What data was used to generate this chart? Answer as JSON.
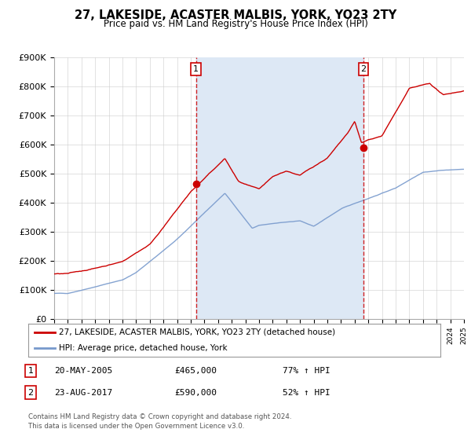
{
  "title": "27, LAKESIDE, ACASTER MALBIS, YORK, YO23 2TY",
  "subtitle": "Price paid vs. HM Land Registry's House Price Index (HPI)",
  "ylim": [
    0,
    900000
  ],
  "yticks": [
    0,
    100000,
    200000,
    300000,
    400000,
    500000,
    600000,
    700000,
    800000,
    900000
  ],
  "ytick_labels": [
    "£0",
    "£100K",
    "£200K",
    "£300K",
    "£400K",
    "£500K",
    "£600K",
    "£700K",
    "£800K",
    "£900K"
  ],
  "background_color": "#ffffff",
  "plot_bg_color": "#ffffff",
  "grid_color": "#cccccc",
  "sale1_date_num": 2005.38,
  "sale1_price": 465000,
  "sale2_date_num": 2017.64,
  "sale2_price": 590000,
  "red_line_color": "#cc0000",
  "blue_line_color": "#7799cc",
  "marker_color": "#cc0000",
  "vline_color": "#cc0000",
  "shaded_region_color": "#dde8f5",
  "legend1_label": "27, LAKESIDE, ACASTER MALBIS, YORK, YO23 2TY (detached house)",
  "legend2_label": "HPI: Average price, detached house, York",
  "annotation1": [
    "1",
    "20-MAY-2005",
    "£465,000",
    "77% ↑ HPI"
  ],
  "annotation2": [
    "2",
    "23-AUG-2017",
    "£590,000",
    "52% ↑ HPI"
  ],
  "footer1": "Contains HM Land Registry data © Crown copyright and database right 2024.",
  "footer2": "This data is licensed under the Open Government Licence v3.0."
}
